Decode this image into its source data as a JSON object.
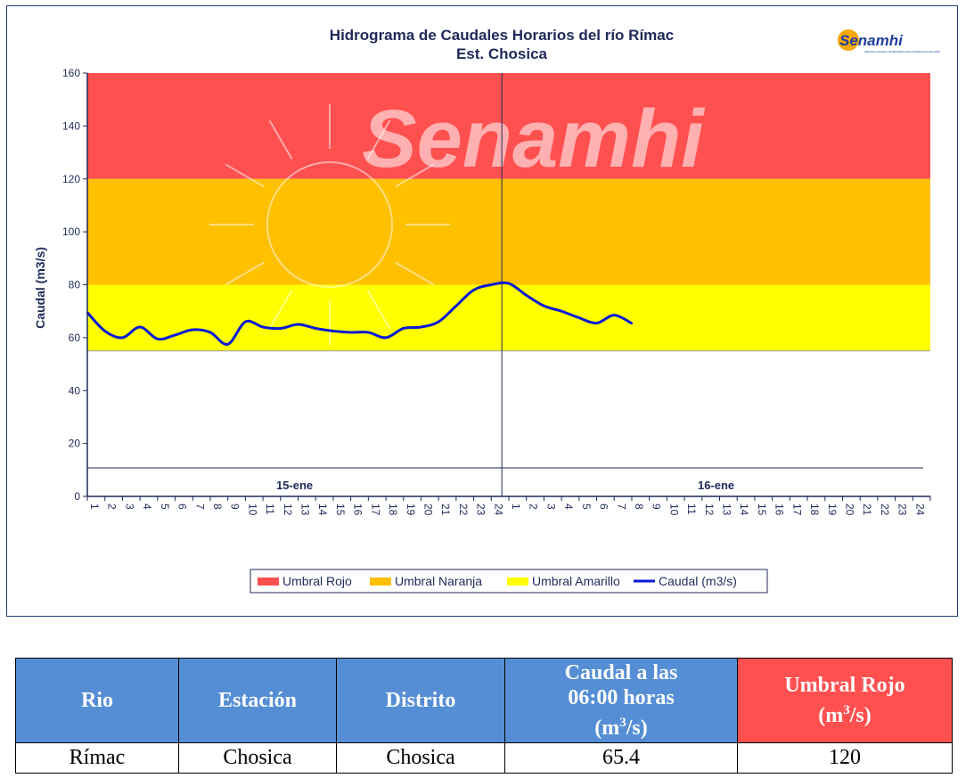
{
  "chart_data": {
    "type": "line",
    "title": "Hidrograma de Caudales Horarios del río Rímac",
    "subtitle": "Est. Chosica",
    "ylabel": "Caudal  (m3/s)",
    "ylim": [
      0,
      160
    ],
    "yticks": [
      "0",
      "20",
      "40",
      "60",
      "80",
      "100",
      "120",
      "140",
      "160"
    ],
    "xticks": [
      "1",
      "2",
      "3",
      "4",
      "5",
      "6",
      "7",
      "8",
      "9",
      "10",
      "11",
      "12",
      "13",
      "14",
      "15",
      "16",
      "17",
      "18",
      "19",
      "20",
      "21",
      "22",
      "23",
      "24",
      "1",
      "2",
      "3",
      "4",
      "5",
      "6",
      "7",
      "8",
      "9",
      "10",
      "11",
      "12",
      "13",
      "14",
      "15",
      "16",
      "17",
      "18",
      "19",
      "20",
      "21",
      "22",
      "23",
      "24"
    ],
    "day_labels": [
      "15-ene",
      "16-ene"
    ],
    "bands": [
      {
        "name": "Umbral Rojo",
        "from": 120,
        "to": 160,
        "color": "#ff5050"
      },
      {
        "name": "Umbral Naranja",
        "from": 80,
        "to": 120,
        "color": "#ffc000"
      },
      {
        "name": "Umbral Amarillo",
        "from": 55,
        "to": 80,
        "color": "#ffff00"
      }
    ],
    "series": [
      {
        "name": "Caudal (m3/s)",
        "color": "#0a1ad6",
        "values": [
          69.5,
          62.5,
          60.0,
          64.0,
          59.5,
          61.0,
          63.0,
          62.0,
          57.5,
          66.0,
          64.0,
          63.5,
          65.0,
          63.5,
          62.5,
          62.0,
          62.0,
          60.0,
          63.5,
          64.0,
          66.0,
          72.0,
          78.0,
          80.0,
          80.5,
          76.0,
          72.0,
          70.0,
          67.5,
          65.5,
          68.5,
          65.4
        ]
      }
    ],
    "legend": [
      "Umbral Rojo",
      "Umbral Naranja",
      "Umbral Amarillo",
      "Caudal (m3/s)"
    ],
    "legend_position": "bottom",
    "watermark": "Senamhi",
    "logo_text": "Senamhi",
    "logo_subtext": "SERVICIO NACIONAL DE METEOROLOGÍA E HIDROLOGÍA DEL PERÚ"
  },
  "table": {
    "headers": {
      "rio": "Rio",
      "estacion": "Estación",
      "distrito": "Distrito",
      "caudal_line1": "Caudal a las",
      "caudal_line2": "06:00 horas",
      "caudal_unit_base": "(m",
      "caudal_unit_exp": "3",
      "caudal_unit_tail": "/s)",
      "umbral_line1": "Umbral Rojo",
      "umbral_unit_base": "(m",
      "umbral_unit_exp": "3",
      "umbral_unit_tail": "/s)"
    },
    "row": {
      "rio": "Rímac",
      "estacion": "Chosica",
      "distrito": "Chosica",
      "caudal": "65.4",
      "umbral": "120"
    }
  }
}
